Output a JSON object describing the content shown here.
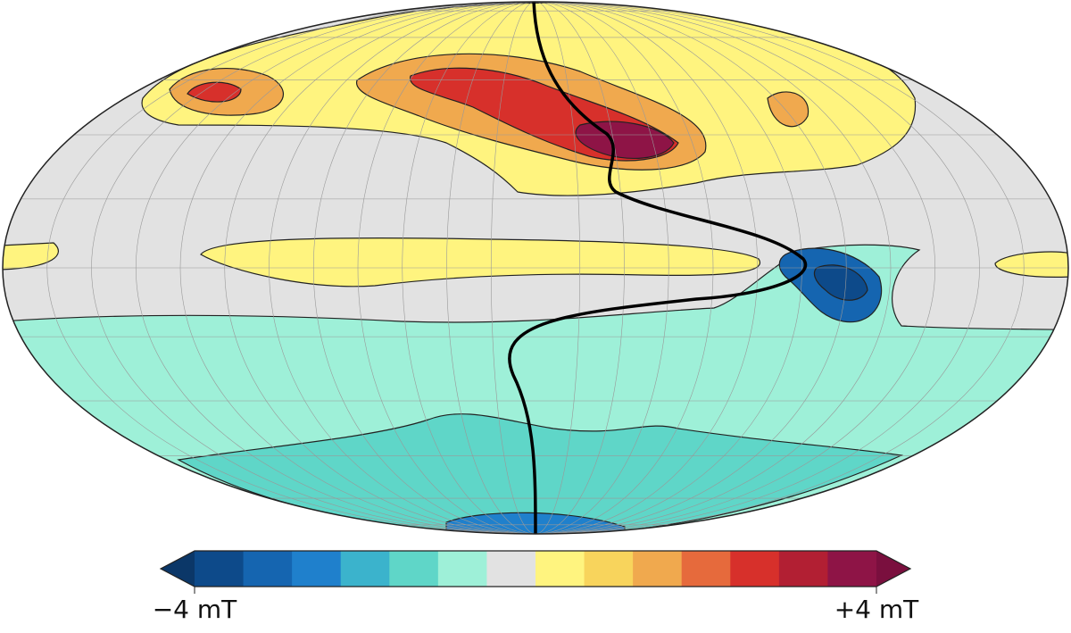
{
  "colorbar": {
    "colors": [
      "#0b3768",
      "#0d4a8a",
      "#1565b0",
      "#1f80cc",
      "#3bb3cc",
      "#5fd6c8",
      "#9ef0d8",
      "#e2e2e2",
      "#fff47f",
      "#f8d45c",
      "#f0a94e",
      "#e66a3c",
      "#d7302b",
      "#b21f33",
      "#8e1446",
      "#7a0f3e"
    ],
    "min_label": "−4 mT",
    "max_label": "+4 mT"
  }
}
